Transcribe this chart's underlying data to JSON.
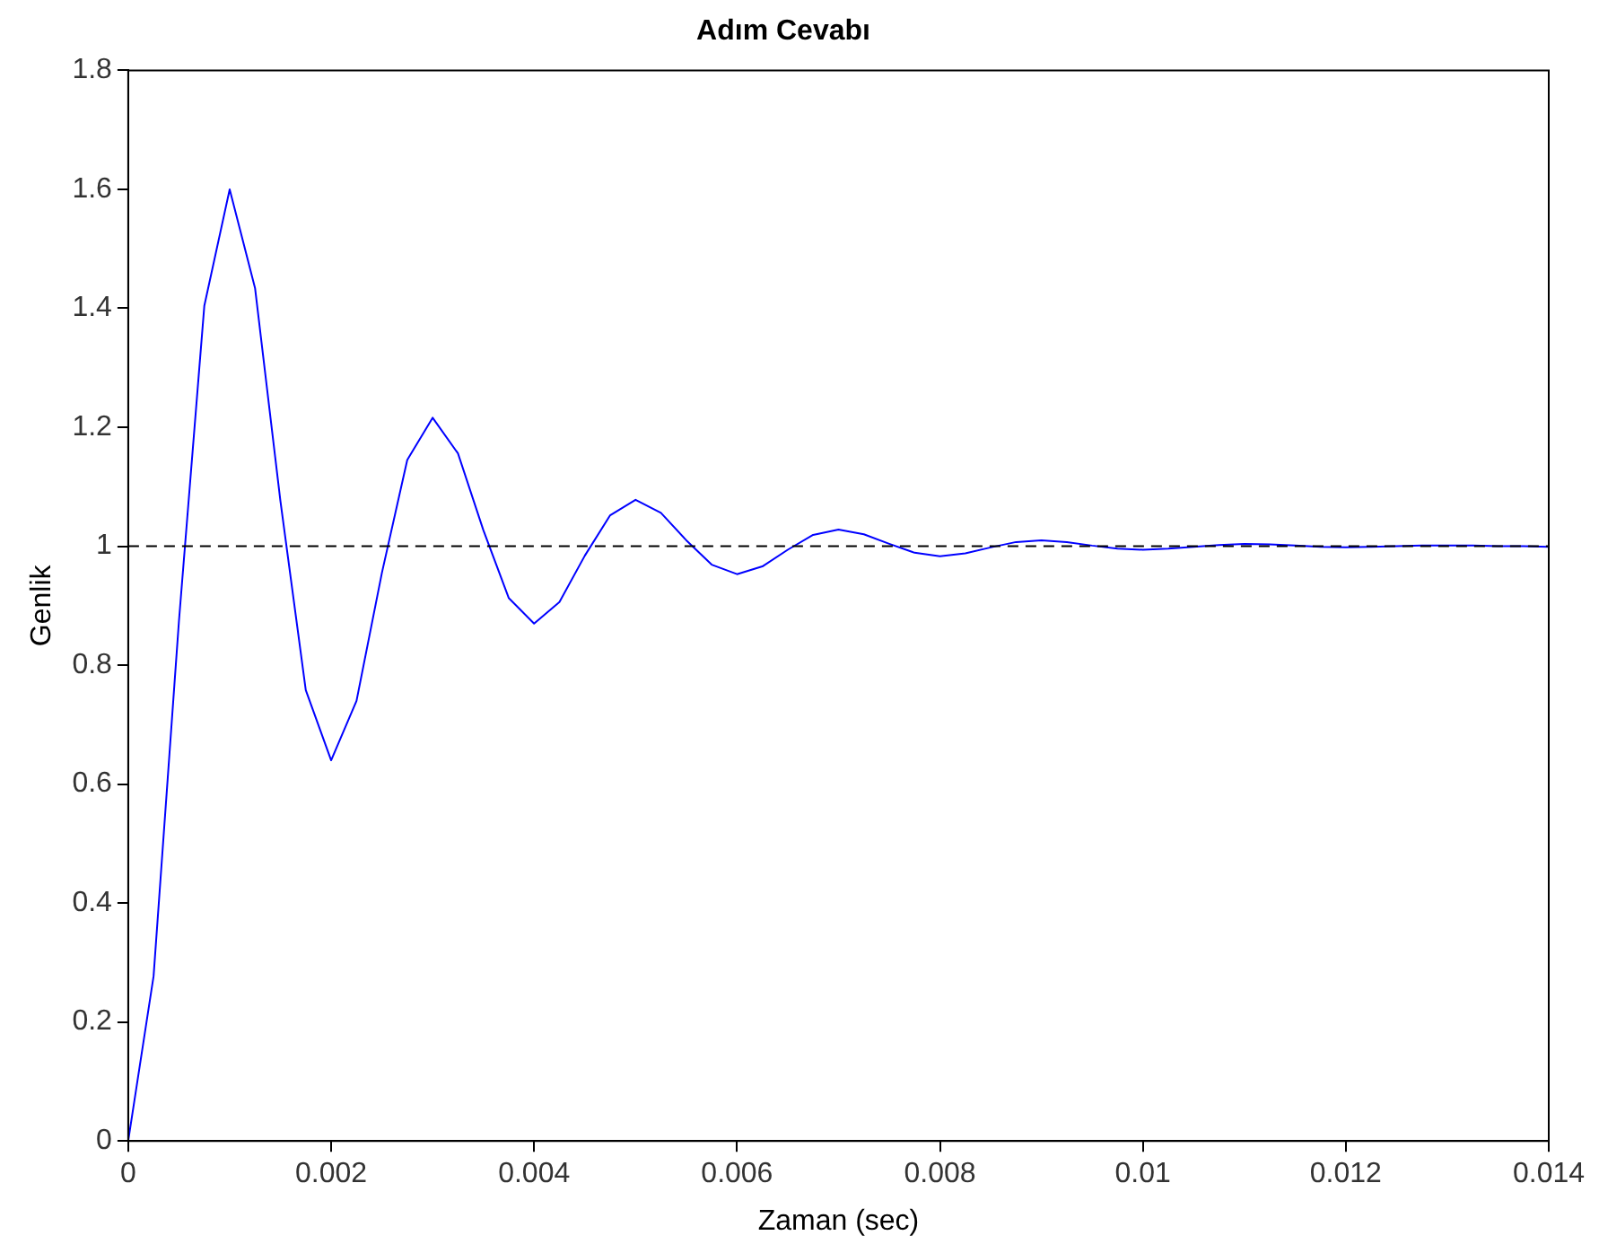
{
  "chart_data": {
    "type": "line",
    "title": "Adım Cevabı",
    "xlabel": "Zaman (sec)",
    "ylabel": "Genlik",
    "x": [
      0,
      0.00025,
      0.0005,
      0.00075,
      0.001,
      0.00125,
      0.0015,
      0.00175,
      0.002,
      0.00225,
      0.0025,
      0.00275,
      0.003,
      0.00325,
      0.0035,
      0.00375,
      0.004,
      0.00425,
      0.0045,
      0.00475,
      0.005,
      0.00525,
      0.0055,
      0.00575,
      0.006,
      0.00625,
      0.0065,
      0.00675,
      0.007,
      0.00725,
      0.0075,
      0.00775,
      0.008,
      0.00825,
      0.0085,
      0.00875,
      0.009,
      0.00925,
      0.0095,
      0.00975,
      0.01,
      0.01025,
      0.0105,
      0.01075,
      0.011,
      0.01125,
      0.0115,
      0.01175,
      0.012,
      0.01225,
      0.0125,
      0.01275,
      0.013,
      0.01325,
      0.0135,
      0.01375,
      0.014
    ],
    "series": [
      {
        "color": "#0000ff",
        "values": [
          0,
          0.277,
          0.874,
          1.404,
          1.6,
          1.434,
          1.076,
          0.758,
          0.64,
          0.74,
          0.955,
          1.145,
          1.216,
          1.156,
          1.027,
          0.913,
          0.87,
          0.906,
          0.984,
          1.052,
          1.078,
          1.056,
          1.01,
          0.969,
          0.953,
          0.966,
          0.994,
          1.019,
          1.028,
          1.02,
          1.004,
          0.989,
          0.983,
          0.988,
          0.998,
          1.007,
          1.01,
          1.007,
          1.001,
          0.996,
          0.994,
          0.996,
          0.999,
          1.002,
          1.004,
          1.003,
          1.001,
          0.999,
          0.998,
          0.999,
          1,
          1.001,
          1.001,
          1.001,
          1,
          1,
          0.999
        ]
      }
    ],
    "xlim": [
      0,
      0.014
    ],
    "xticks": [
      0,
      0.002,
      0.004,
      0.006,
      0.008,
      0.01,
      0.012,
      0.014
    ],
    "ylim": [
      0,
      1.8
    ],
    "yticks": [
      0,
      0.2,
      0.4,
      0.6,
      0.8,
      1,
      1.2,
      1.4,
      1.6,
      1.8
    ],
    "ref_lines": [
      {
        "axis": "y",
        "value": 1,
        "color": "#000000",
        "line_style": "dashed"
      }
    ],
    "legend": false,
    "marker": "none",
    "line_style": "solid"
  }
}
